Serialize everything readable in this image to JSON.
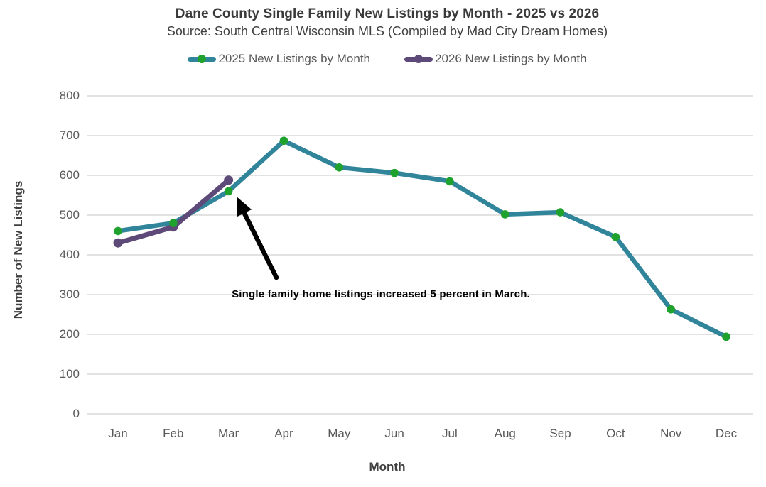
{
  "title": "Dane County Single Family New Listings by Month - 2025 vs 2026",
  "subtitle": "Source: South Central Wisconsin MLS (Compiled by Mad City Dream Homes)",
  "y_axis": {
    "title": "Number of New Listings",
    "ticks": [
      0,
      100,
      200,
      300,
      400,
      500,
      600,
      700,
      800
    ]
  },
  "x_axis": {
    "title": "Month"
  },
  "annotation": {
    "text": "Single family home listings increased 5 percent in March."
  },
  "colors": {
    "teal_line": "#31859b",
    "green_marker": "#1ea12d",
    "purple_line": "#5d4a79",
    "gridline": "#d9d9d9",
    "axis_text": "#595959",
    "annotation": "#000000"
  },
  "chart_data": {
    "type": "line",
    "categories": [
      "Jan",
      "Feb",
      "Mar",
      "Apr",
      "May",
      "Jun",
      "Jul",
      "Aug",
      "Sep",
      "Oct",
      "Nov",
      "Dec"
    ],
    "series": [
      {
        "name": "2025 New Listings by Month",
        "color": "#31859b",
        "marker_color": "#1ea12d",
        "values": [
          460,
          480,
          560,
          687,
          620,
          606,
          585,
          502,
          507,
          445,
          263,
          194
        ]
      },
      {
        "name": "2026 New Listings by Month",
        "color": "#5d4a79",
        "marker_color": "#5d4a79",
        "values": [
          430,
          470,
          588
        ]
      }
    ],
    "title": "Dane County Single Family New Listings by Month - 2025 vs 2026",
    "xlabel": "Month",
    "ylabel": "Number of New Listings",
    "ylim": [
      0,
      800
    ],
    "ytick_step": 100,
    "grid": true,
    "legend_position": "top",
    "annotations": [
      "Single family home listings increased 5 percent in March."
    ]
  }
}
